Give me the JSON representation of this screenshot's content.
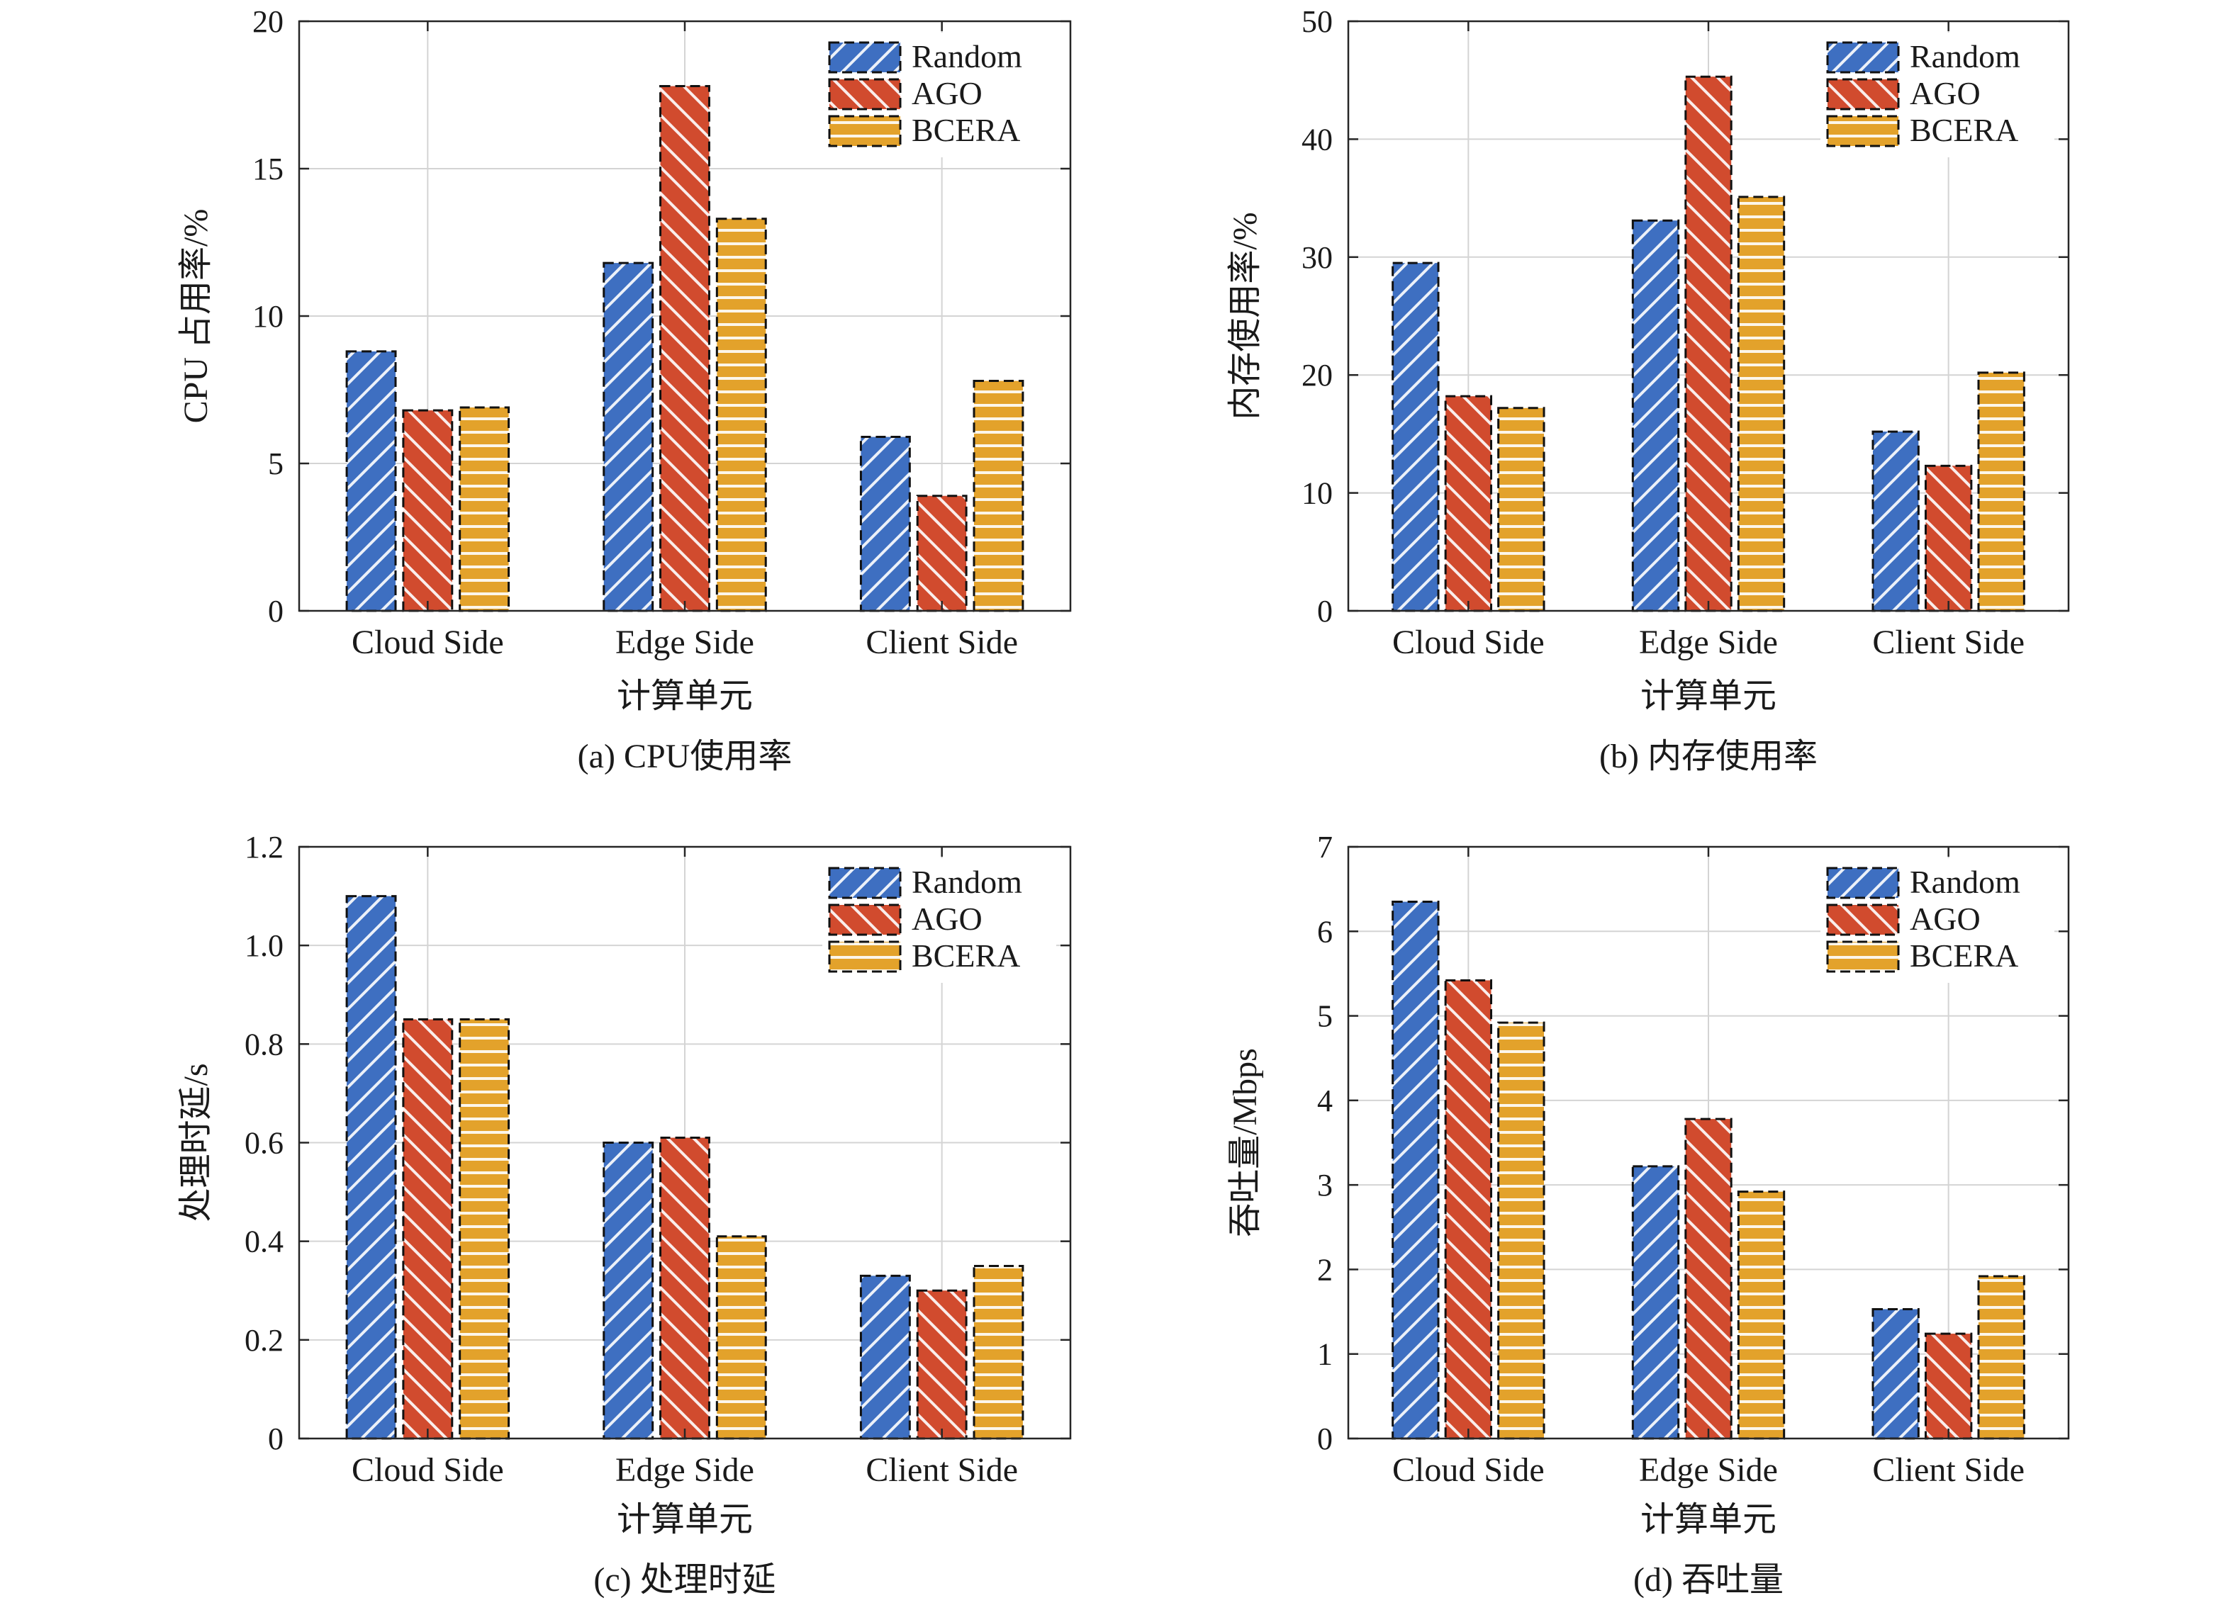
{
  "figure": {
    "colors": {
      "Random": "#3E6FC1",
      "AGO": "#D14B2E",
      "BCERA": "#E3A22B"
    }
  },
  "chart_data": [
    {
      "id": "a",
      "type": "bar",
      "caption": "(a)  CPU使用率",
      "xlabel": "计算单元",
      "ylabel": "CPU 占用率/%",
      "categories": [
        "Cloud Side",
        "Edge Side",
        "Client Side"
      ],
      "ylim": [
        0,
        20
      ],
      "yticks": [
        0,
        5,
        10,
        15,
        20
      ],
      "ytick_labels": [
        "0",
        "5",
        "10",
        "15",
        "20"
      ],
      "grid": true,
      "legend_position": "top-right",
      "series": [
        {
          "name": "Random",
          "values": [
            8.8,
            11.8,
            5.9
          ]
        },
        {
          "name": "AGO",
          "values": [
            6.8,
            17.8,
            3.9
          ]
        },
        {
          "name": "BCERA",
          "values": [
            6.9,
            13.3,
            7.8
          ]
        }
      ]
    },
    {
      "id": "b",
      "type": "bar",
      "caption": "(b)  内存使用率",
      "xlabel": "计算单元",
      "ylabel": "内存使用率/%",
      "categories": [
        "Cloud Side",
        "Edge Side",
        "Client Side"
      ],
      "ylim": [
        0,
        50
      ],
      "yticks": [
        0,
        10,
        20,
        30,
        40,
        50
      ],
      "ytick_labels": [
        "0",
        "10",
        "20",
        "30",
        "40",
        "50"
      ],
      "grid": true,
      "legend_position": "top-right",
      "series": [
        {
          "name": "Random",
          "values": [
            29.5,
            33.1,
            15.2
          ]
        },
        {
          "name": "AGO",
          "values": [
            18.2,
            45.3,
            12.3
          ]
        },
        {
          "name": "BCERA",
          "values": [
            17.2,
            35.1,
            20.2
          ]
        }
      ]
    },
    {
      "id": "c",
      "type": "bar",
      "caption": "(c)  处理时延",
      "xlabel": "计算单元",
      "ylabel": "处理时延/s",
      "categories": [
        "Cloud Side",
        "Edge Side",
        "Client Side"
      ],
      "ylim": [
        0,
        1.2
      ],
      "yticks": [
        0,
        0.2,
        0.4,
        0.6,
        0.8,
        1.0,
        1.2
      ],
      "ytick_labels": [
        "0",
        "0.2",
        "0.4",
        "0.6",
        "0.8",
        "1.0",
        "1.2"
      ],
      "grid": true,
      "legend_position": "top-right",
      "series": [
        {
          "name": "Random",
          "values": [
            1.1,
            0.6,
            0.33
          ]
        },
        {
          "name": "AGO",
          "values": [
            0.85,
            0.61,
            0.3
          ]
        },
        {
          "name": "BCERA",
          "values": [
            0.85,
            0.41,
            0.35
          ]
        }
      ]
    },
    {
      "id": "d",
      "type": "bar",
      "caption": "(d)  吞吐量",
      "xlabel": "计算单元",
      "ylabel": "吞吐量/Mbps",
      "categories": [
        "Cloud Side",
        "Edge Side",
        "Client Side"
      ],
      "ylim": [
        0,
        7
      ],
      "yticks": [
        0,
        1,
        2,
        3,
        4,
        5,
        6,
        7
      ],
      "ytick_labels": [
        "0",
        "1",
        "2",
        "3",
        "4",
        "5",
        "6",
        "7"
      ],
      "grid": true,
      "legend_position": "top-right",
      "series": [
        {
          "name": "Random",
          "values": [
            6.35,
            3.22,
            1.53
          ]
        },
        {
          "name": "AGO",
          "values": [
            5.42,
            3.78,
            1.24
          ]
        },
        {
          "name": "BCERA",
          "values": [
            4.92,
            2.92,
            1.92
          ]
        }
      ]
    }
  ]
}
